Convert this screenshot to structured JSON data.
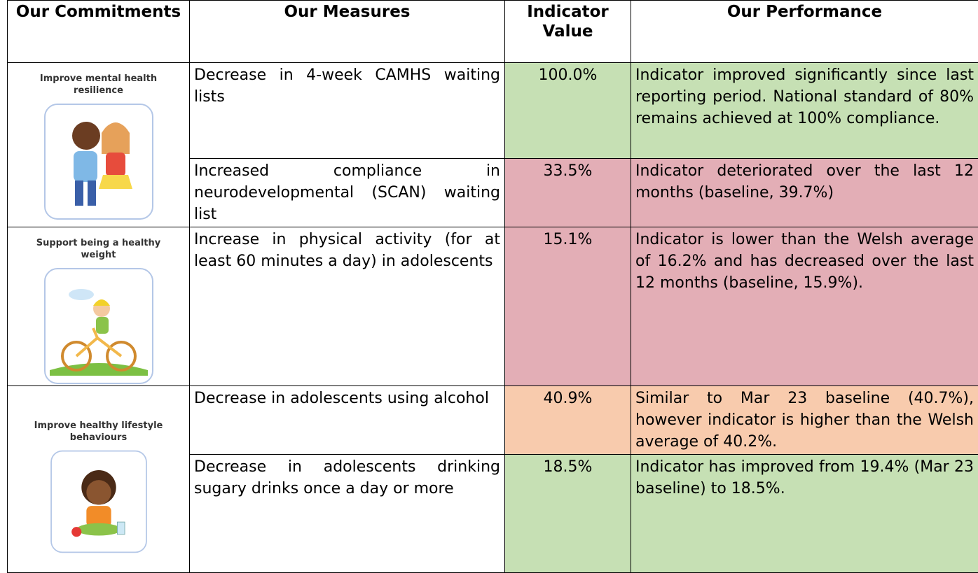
{
  "table": {
    "header": [
      "Our Commitments",
      "Our Measures",
      "Indicator Value",
      "Our Performance"
    ],
    "groups": [
      {
        "commitment": "Improve mental health resilience",
        "rows": [
          {
            "measure": "Decrease in 4-week CAMHS waiting lists",
            "value": "100.0%",
            "performance": "Indicator improved significantly since last reporting period. National standard of 80% remains achieved at 100% compliance.",
            "color": "#c6e0b4"
          },
          {
            "measure": "Increased compliance in neurodevelopmental (SCAN) waiting list",
            "value": "33.5%",
            "performance": "Indicator deteriorated over the last 12 months (baseline, 39.7%)",
            "color": "#e3aeb6"
          }
        ]
      },
      {
        "commitment": "Support being a healthy weight",
        "rows": [
          {
            "measure": "Increase in physical activity (for at least 60 minutes a day) in adolescents",
            "value": "15.1%",
            "performance": "Indicator is lower than the Welsh average of 16.2% and has decreased over the last 12 months (baseline, 15.9%).",
            "color": "#e3aeb6"
          }
        ]
      },
      {
        "commitment": "Improve healthy lifestyle behaviours",
        "rows": [
          {
            "measure": "Decrease in adolescents using alcohol",
            "value": "40.9%",
            "performance": "Similar to Mar 23 baseline (40.7%), however indicator is higher than the Welsh average of 40.2%.",
            "color": "#f8cbad"
          },
          {
            "measure": "Decrease in adolescents drinking sugary drinks once a day or more",
            "value": "18.5%",
            "performance": "Indicator has improved from 19.4% (Mar 23 baseline) to 18.5%.",
            "color": "#c6e0b4"
          }
        ]
      }
    ]
  }
}
